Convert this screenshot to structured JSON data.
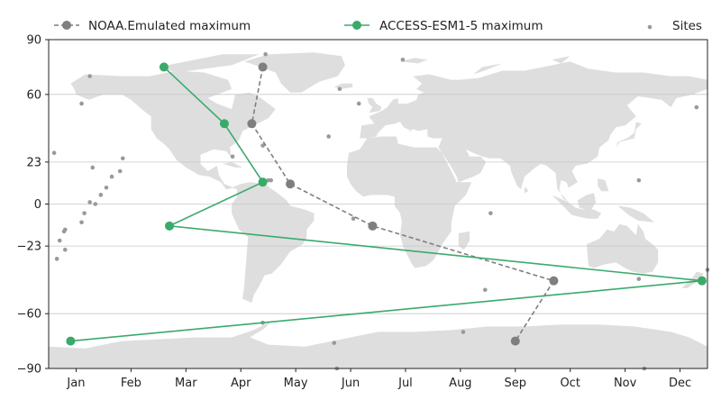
{
  "chart_data": {
    "type": "scatter",
    "title": "",
    "xlabel": "",
    "ylabel": "",
    "x_unit": "month",
    "xlim": [
      0,
      12
    ],
    "ylim": [
      -90,
      90
    ],
    "x_tick_labels": [
      "Jan",
      "Feb",
      "Mar",
      "Apr",
      "May",
      "Jun",
      "Jul",
      "Aug",
      "Sep",
      "Oct",
      "Nov",
      "Dec"
    ],
    "x_tick_values": [
      0.5,
      1.5,
      2.5,
      3.5,
      4.5,
      5.5,
      6.5,
      7.5,
      8.5,
      9.5,
      10.5,
      11.5
    ],
    "y_ticks": [
      -90,
      -60,
      -23,
      0,
      23,
      60,
      90
    ],
    "grid": true,
    "legend_placement": "top",
    "background": "world land map",
    "series": [
      {
        "name": "NOAA.Emulated maximum",
        "style": "dashed-line-with-markers",
        "color": "#7f7f7f",
        "points": [
          {
            "month": 3.9,
            "lat": 75
          },
          {
            "month": 3.7,
            "lat": 44
          },
          {
            "month": 4.4,
            "lat": 11
          },
          {
            "month": 5.9,
            "lat": -12
          },
          {
            "month": 9.2,
            "lat": -42
          },
          {
            "month": 8.5,
            "lat": -75
          }
        ]
      },
      {
        "name": "ACCESS-ESM1-5 maximum",
        "style": "solid-line-with-markers",
        "color": "#3aaa6b",
        "points": [
          {
            "month": 2.1,
            "lat": 75
          },
          {
            "month": 3.2,
            "lat": 44
          },
          {
            "month": 3.9,
            "lat": 12
          },
          {
            "month": 2.2,
            "lat": -12
          },
          {
            "month": 11.9,
            "lat": -42
          },
          {
            "month": 0.4,
            "lat": -75
          }
        ]
      },
      {
        "name": "Sites",
        "style": "points",
        "color": "#999999",
        "points": [
          {
            "month": 0.1,
            "lat": 28
          },
          {
            "month": 0.15,
            "lat": -30
          },
          {
            "month": 0.2,
            "lat": -20
          },
          {
            "month": 0.3,
            "lat": -25
          },
          {
            "month": 0.28,
            "lat": -15
          },
          {
            "month": 0.3,
            "lat": -14
          },
          {
            "month": 0.6,
            "lat": 55
          },
          {
            "month": 0.75,
            "lat": 70
          },
          {
            "month": 0.8,
            "lat": 20
          },
          {
            "month": 0.85,
            "lat": 0
          },
          {
            "month": 0.75,
            "lat": 1
          },
          {
            "month": 0.65,
            "lat": -5
          },
          {
            "month": 0.6,
            "lat": -10
          },
          {
            "month": 0.95,
            "lat": 5
          },
          {
            "month": 1.05,
            "lat": 9
          },
          {
            "month": 1.15,
            "lat": 15
          },
          {
            "month": 1.3,
            "lat": 18
          },
          {
            "month": 1.35,
            "lat": 25
          },
          {
            "month": 3.35,
            "lat": 26
          },
          {
            "month": 3.9,
            "lat": 32
          },
          {
            "month": 4.0,
            "lat": 13
          },
          {
            "month": 4.05,
            "lat": 13
          },
          {
            "month": 3.95,
            "lat": 82
          },
          {
            "month": 3.9,
            "lat": -65
          },
          {
            "month": 5.1,
            "lat": 37
          },
          {
            "month": 5.3,
            "lat": 63
          },
          {
            "month": 5.55,
            "lat": -8
          },
          {
            "month": 5.65,
            "lat": 55
          },
          {
            "month": 5.2,
            "lat": -76
          },
          {
            "month": 5.25,
            "lat": -90
          },
          {
            "month": 6.45,
            "lat": 79
          },
          {
            "month": 7.55,
            "lat": -70
          },
          {
            "month": 7.95,
            "lat": -47
          },
          {
            "month": 8.05,
            "lat": -5
          },
          {
            "month": 10.75,
            "lat": 13
          },
          {
            "month": 10.75,
            "lat": -41
          },
          {
            "month": 10.85,
            "lat": -90
          },
          {
            "month": 11.8,
            "lat": 53
          },
          {
            "month": 12.0,
            "lat": -36
          }
        ]
      }
    ]
  }
}
